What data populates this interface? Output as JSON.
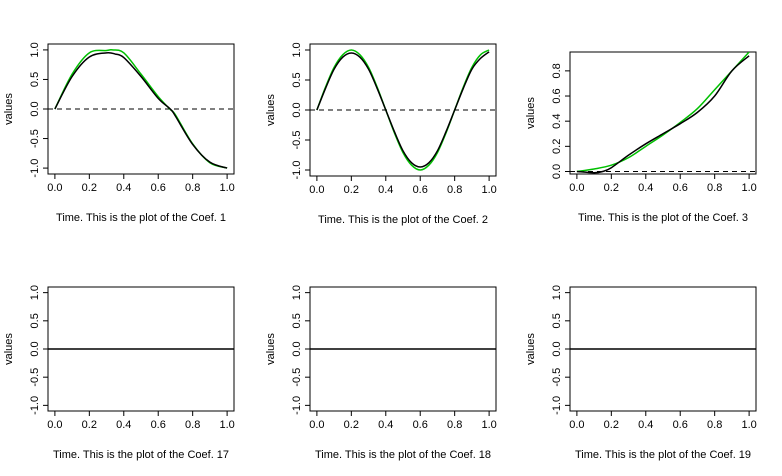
{
  "chart_data": [
    {
      "type": "line",
      "xlabel": "Time. This is the plot of the Coef. 1",
      "ylabel": "values",
      "xlim": [
        0,
        1
      ],
      "ylim": [
        -1.1,
        1.1
      ],
      "xticks": [
        "0.0",
        "0.2",
        "0.4",
        "0.6",
        "0.8",
        "1.0"
      ],
      "yticks": [
        "-1.0",
        "-0.5",
        "0.0",
        "0.5",
        "1.0"
      ],
      "baseline": 0,
      "series": [
        {
          "color": "#00c000",
          "x": [
            0,
            0.1,
            0.2,
            0.3,
            0.333,
            0.4,
            0.5,
            0.6,
            0.667,
            0.7,
            0.8,
            0.9,
            1.0
          ],
          "y": [
            0,
            0.59,
            0.95,
            0.99,
            1.0,
            0.95,
            0.59,
            0.21,
            0,
            -0.1,
            -0.59,
            -0.91,
            -1.0
          ]
        },
        {
          "color": "#000000",
          "x": [
            0,
            0.1,
            0.2,
            0.3,
            0.35,
            0.4,
            0.5,
            0.6,
            0.67,
            0.7,
            0.8,
            0.9,
            1.0
          ],
          "y": [
            0,
            0.55,
            0.88,
            0.95,
            0.93,
            0.87,
            0.55,
            0.18,
            0,
            -0.12,
            -0.6,
            -0.9,
            -1.0
          ]
        }
      ]
    },
    {
      "type": "line",
      "xlabel": "Time. This is the plot of the Coef. 2",
      "ylabel": "values",
      "xlim": [
        0,
        1
      ],
      "ylim": [
        -1.1,
        1.1
      ],
      "xticks": [
        "0.0",
        "0.2",
        "0.4",
        "0.6",
        "0.8",
        "1.0"
      ],
      "yticks": [
        "-1.0",
        "-0.5",
        "0.0",
        "0.5",
        "1.0"
      ],
      "baseline": 0,
      "series": [
        {
          "color": "#00c000",
          "x": [
            0,
            0.05,
            0.1,
            0.15,
            0.2,
            0.25,
            0.3,
            0.35,
            0.4,
            0.45,
            0.5,
            0.55,
            0.6,
            0.65,
            0.7,
            0.75,
            0.8,
            0.85,
            0.9,
            0.95,
            1.0
          ],
          "y": [
            0,
            0.38,
            0.71,
            0.92,
            1.0,
            0.92,
            0.71,
            0.38,
            0,
            -0.38,
            -0.71,
            -0.92,
            -1.0,
            -0.92,
            -0.71,
            -0.38,
            0,
            0.38,
            0.71,
            0.92,
            1.0
          ]
        },
        {
          "color": "#000000",
          "x": [
            0,
            0.05,
            0.1,
            0.15,
            0.2,
            0.25,
            0.3,
            0.35,
            0.4,
            0.45,
            0.5,
            0.55,
            0.6,
            0.65,
            0.7,
            0.75,
            0.8,
            0.85,
            0.9,
            0.95,
            1.0
          ],
          "y": [
            0,
            0.36,
            0.68,
            0.88,
            0.95,
            0.88,
            0.68,
            0.36,
            0,
            -0.36,
            -0.68,
            -0.88,
            -0.95,
            -0.88,
            -0.68,
            -0.36,
            0,
            0.36,
            0.68,
            0.86,
            0.97
          ]
        }
      ]
    },
    {
      "type": "line",
      "xlabel": "Time. This is the plot of the Coef. 3",
      "ylabel": "values",
      "xlim": [
        0,
        1
      ],
      "ylim": [
        -0.02,
        0.95
      ],
      "xticks": [
        "0.0",
        "0.2",
        "0.4",
        "0.6",
        "0.8",
        "1.0"
      ],
      "yticks": [
        "0.0",
        "0.2",
        "0.4",
        "0.6",
        "0.8"
      ],
      "baseline": 0,
      "series": [
        {
          "color": "#00c000",
          "x": [
            0,
            0.1,
            0.2,
            0.3,
            0.4,
            0.5,
            0.6,
            0.7,
            0.8,
            0.9,
            1.0
          ],
          "y": [
            0,
            0.02,
            0.05,
            0.11,
            0.2,
            0.29,
            0.39,
            0.5,
            0.65,
            0.8,
            0.95
          ]
        },
        {
          "color": "#000000",
          "x": [
            0,
            0.1,
            0.15,
            0.2,
            0.3,
            0.4,
            0.5,
            0.6,
            0.7,
            0.8,
            0.9,
            1.0
          ],
          "y": [
            0,
            -0.01,
            0,
            0.03,
            0.13,
            0.22,
            0.3,
            0.38,
            0.47,
            0.6,
            0.8,
            0.92
          ]
        }
      ]
    },
    {
      "type": "line",
      "xlabel": "Time. This is the plot of the Coef. 17",
      "ylabel": "values",
      "xlim": [
        0,
        1
      ],
      "ylim": [
        -1.1,
        1.1
      ],
      "xticks": [
        "0.0",
        "0.2",
        "0.4",
        "0.6",
        "0.8",
        "1.0"
      ],
      "yticks": [
        "-1.0",
        "-0.5",
        "0.0",
        "0.5",
        "1.0"
      ],
      "series": [
        {
          "color": "#000000",
          "x": [
            0,
            1.0
          ],
          "y": [
            0,
            0
          ]
        }
      ]
    },
    {
      "type": "line",
      "xlabel": "Time. This is the plot of the Coef. 18",
      "ylabel": "values",
      "xlim": [
        0,
        1
      ],
      "ylim": [
        -1.1,
        1.1
      ],
      "xticks": [
        "0.0",
        "0.2",
        "0.4",
        "0.6",
        "0.8",
        "1.0"
      ],
      "yticks": [
        "-1.0",
        "-0.5",
        "0.0",
        "0.5",
        "1.0"
      ],
      "series": [
        {
          "color": "#000000",
          "x": [
            0,
            1.0
          ],
          "y": [
            0,
            0
          ]
        }
      ]
    },
    {
      "type": "line",
      "xlabel": "Time. This is the plot of the Coef. 19",
      "ylabel": "values",
      "xlim": [
        0,
        1
      ],
      "ylim": [
        -1.1,
        1.1
      ],
      "xticks": [
        "0.0",
        "0.2",
        "0.4",
        "0.6",
        "0.8",
        "1.0"
      ],
      "yticks": [
        "-1.0",
        "-0.5",
        "0.0",
        "0.5",
        "1.0"
      ],
      "series": [
        {
          "color": "#000000",
          "x": [
            0,
            1.0
          ],
          "y": [
            0,
            0
          ]
        }
      ]
    }
  ]
}
